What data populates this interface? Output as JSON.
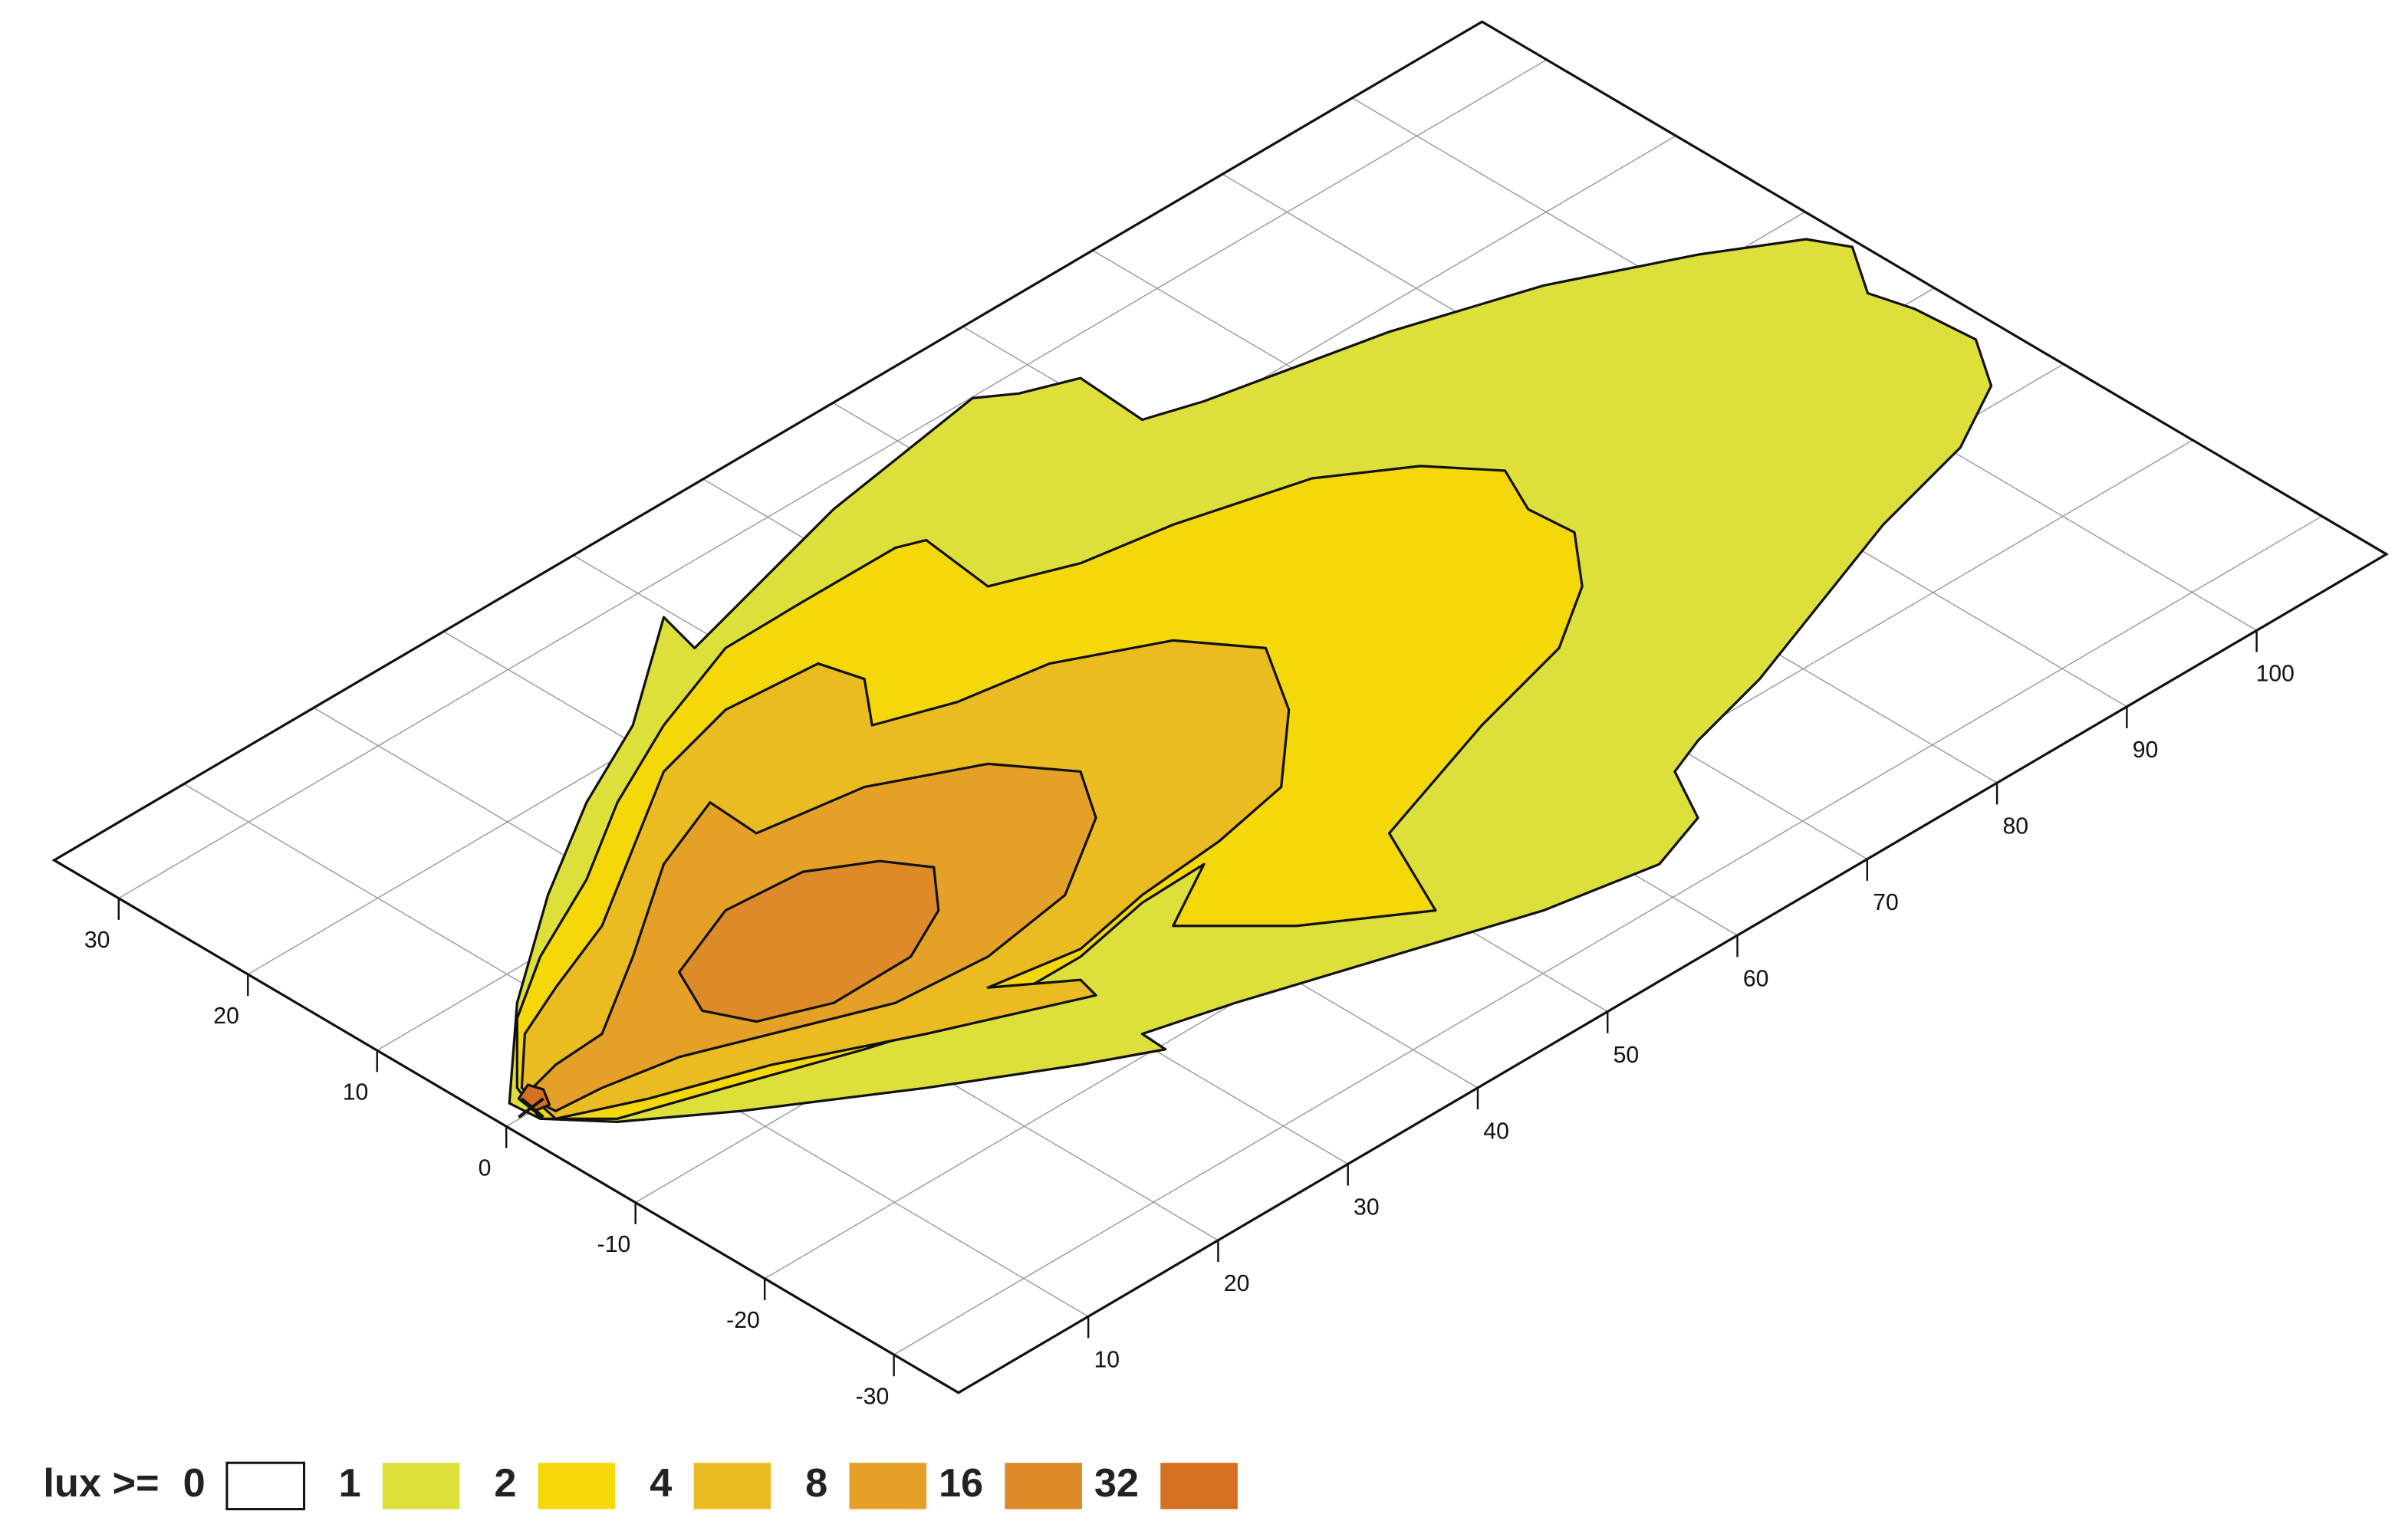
{
  "chart_data": {
    "type": "contour",
    "xlim": [
      0,
      110
    ],
    "ylim": [
      -35,
      35
    ],
    "xticks": [
      10,
      20,
      30,
      40,
      50,
      60,
      70,
      80,
      90,
      100
    ],
    "yticks": [
      -30,
      -20,
      -10,
      0,
      10,
      20,
      30
    ],
    "grid": true,
    "legend_label": "lux >=",
    "levels": [
      0,
      1,
      2,
      4,
      8,
      16,
      32
    ],
    "colors": [
      "#ffffff",
      "#dde03b",
      "#f5d80a",
      "#ebbb22",
      "#e5a027",
      "#dd8a28",
      "#d47020"
    ]
  }
}
